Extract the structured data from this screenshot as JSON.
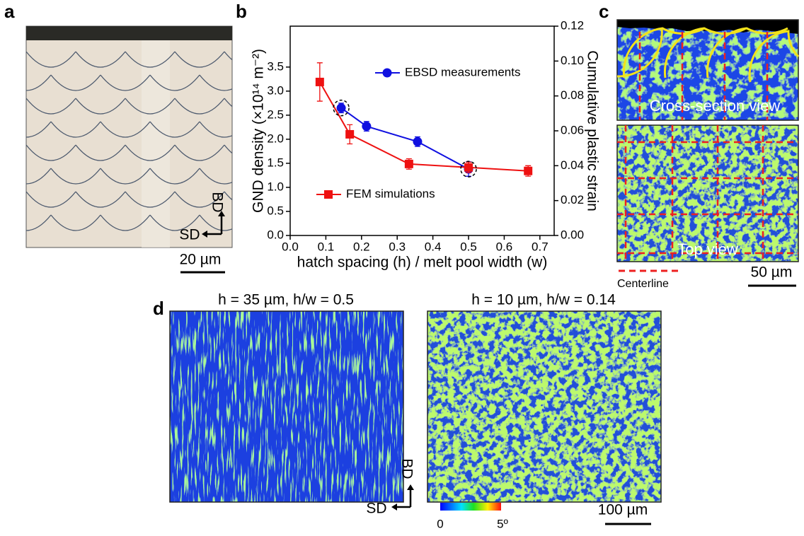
{
  "panels": {
    "a": {
      "label": "a",
      "bd": "BD",
      "sd": "SD",
      "scale_bar": "20 µm"
    },
    "b": {
      "label": "b"
    },
    "c": {
      "label": "c",
      "cross_section": "Cross-section view",
      "top": "Top view",
      "centerline": "Centerline",
      "scale_bar": "50 µm"
    },
    "d": {
      "label": "d",
      "left_title": "h = 35 µm, h/w = 0.5",
      "right_title": "h = 10 µm, h/w = 0.14",
      "bd": "BD",
      "sd": "SD",
      "colorbar_min": "0",
      "colorbar_max": "5º",
      "scale_bar": "100 µm"
    }
  },
  "chart_data": {
    "type": "line",
    "xlabel": "hatch spacing (h) / melt pool width (w)",
    "ylabel": "GND density (×10¹⁴ m⁻²)",
    "y2label": "Cumulative plastic strain",
    "xlim": [
      0,
      0.74
    ],
    "xticks": [
      {
        "value": 0,
        "label": "0.0"
      },
      0.1,
      0.2,
      0.3,
      0.4,
      0.5,
      0.6,
      0.7
    ],
    "ylim": [
      0,
      4.35
    ],
    "yticks": [
      {
        "value": 0,
        "label": "0.0"
      },
      0.5,
      {
        "value": 1,
        "label": "1.0"
      },
      1.5,
      {
        "value": 2,
        "label": "2.0"
      },
      2.5,
      {
        "value": 3,
        "label": "3.0"
      },
      3.5
    ],
    "y2lim": [
      0,
      0.12
    ],
    "y2ticks": [
      {
        "value": 0,
        "label": "0.00"
      },
      {
        "value": 0.02,
        "label": "0.02"
      },
      {
        "value": 0.04,
        "label": "0.04"
      },
      {
        "value": 0.06,
        "label": "0.06"
      },
      {
        "value": 0.08,
        "label": "0.08"
      },
      {
        "value": 0.1,
        "label": "0.10"
      },
      {
        "value": 0.12,
        "label": "0.12"
      }
    ],
    "series": [
      {
        "name": "EBSD measurements",
        "color": "#1010e0",
        "marker": "circle",
        "axis": "y",
        "x": [
          0.143,
          0.214,
          0.357,
          0.5
        ],
        "values": [
          2.65,
          2.27,
          1.95,
          1.38
        ],
        "errors": [
          0.1,
          0.1,
          0.1,
          0.15
        ]
      },
      {
        "name": "FEM simulations",
        "color": "#ee1111",
        "marker": "square",
        "axis": "y2",
        "x": [
          0.083,
          0.167,
          0.333,
          0.5,
          0.667
        ],
        "values": [
          0.088,
          0.058,
          0.041,
          0.039,
          0.037
        ],
        "errors": [
          0.011,
          0.0055,
          0.003,
          0.003,
          0.003
        ]
      }
    ]
  }
}
